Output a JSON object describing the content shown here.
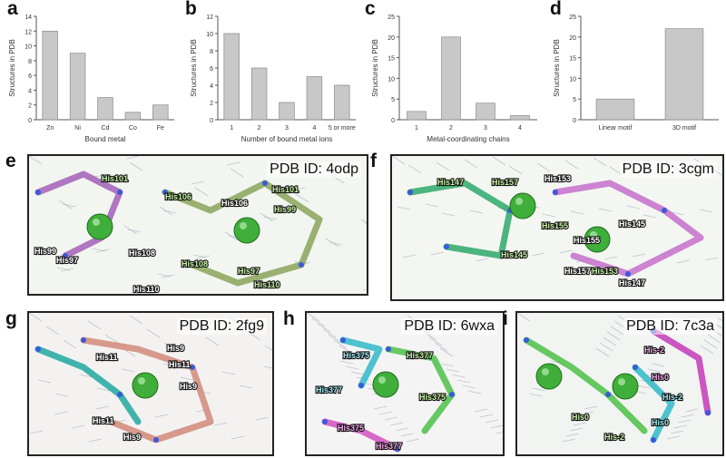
{
  "colors": {
    "bar": "#c8c8c8",
    "bar_stroke": "#8a8a8a",
    "axis": "#555555",
    "label": "#333333"
  },
  "chart_data": [
    {
      "panel": "a",
      "type": "bar",
      "categories": [
        "Zn",
        "Ni",
        "Cd",
        "Co",
        "Fe"
      ],
      "values": [
        12,
        9,
        3,
        1,
        2
      ],
      "xlabel": "Bound metal",
      "ylabel": "Structures in PDB",
      "ylim": [
        0,
        14
      ],
      "yticks": [
        0,
        2,
        4,
        6,
        8,
        10,
        12,
        14
      ]
    },
    {
      "panel": "b",
      "type": "bar",
      "categories": [
        "1",
        "2",
        "3",
        "4",
        "5 or more"
      ],
      "values": [
        10,
        6,
        2,
        5,
        4
      ],
      "xlabel": "Number of bound metal ions",
      "ylabel": "Structures in PDB",
      "ylim": [
        0,
        12
      ],
      "yticks": [
        0,
        2,
        4,
        6,
        8,
        10,
        12
      ]
    },
    {
      "panel": "c",
      "type": "bar",
      "categories": [
        "1",
        "2",
        "3",
        "4"
      ],
      "values": [
        2,
        20,
        4,
        1
      ],
      "xlabel": "Metal-coordinating chains",
      "ylabel": "Structures in PDB",
      "ylim": [
        0,
        25
      ],
      "yticks": [
        0,
        5,
        10,
        15,
        20,
        25
      ]
    },
    {
      "panel": "d",
      "type": "bar",
      "categories": [
        "Linear motif",
        "3D motif"
      ],
      "values": [
        5,
        22
      ],
      "xlabel": "",
      "ylabel": "Structures in PDB",
      "ylim": [
        0,
        25
      ],
      "yticks": [
        0,
        5,
        10,
        15,
        20,
        25
      ]
    }
  ],
  "structures": [
    {
      "panel": "e",
      "pdb_label": "PDB ID: 4odp",
      "residues": [
        "His101",
        "His106",
        "His106",
        "His101",
        "His99",
        "His99",
        "His97",
        "His108",
        "His108",
        "His110",
        "His97",
        "His110"
      ]
    },
    {
      "panel": "f",
      "pdb_label": "PDB ID: 3cgm",
      "residues": [
        "His147",
        "His157",
        "His153",
        "His155",
        "His145",
        "His155",
        "His145",
        "His157",
        "His153",
        "His147"
      ]
    },
    {
      "panel": "g",
      "pdb_label": "PDB ID: 2fg9",
      "residues": [
        "His9",
        "His11",
        "His11",
        "His9",
        "His11",
        "His9"
      ]
    },
    {
      "panel": "h",
      "pdb_label": "PDB ID: 6wxa",
      "residues": [
        "His375",
        "His377",
        "His377",
        "His375",
        "His375",
        "His377"
      ]
    },
    {
      "panel": "i",
      "pdb_label": "PDB ID: 7c3a",
      "residues": [
        "His-2",
        "His0",
        "His-2",
        "His0",
        "His-2",
        "His0"
      ]
    }
  ]
}
